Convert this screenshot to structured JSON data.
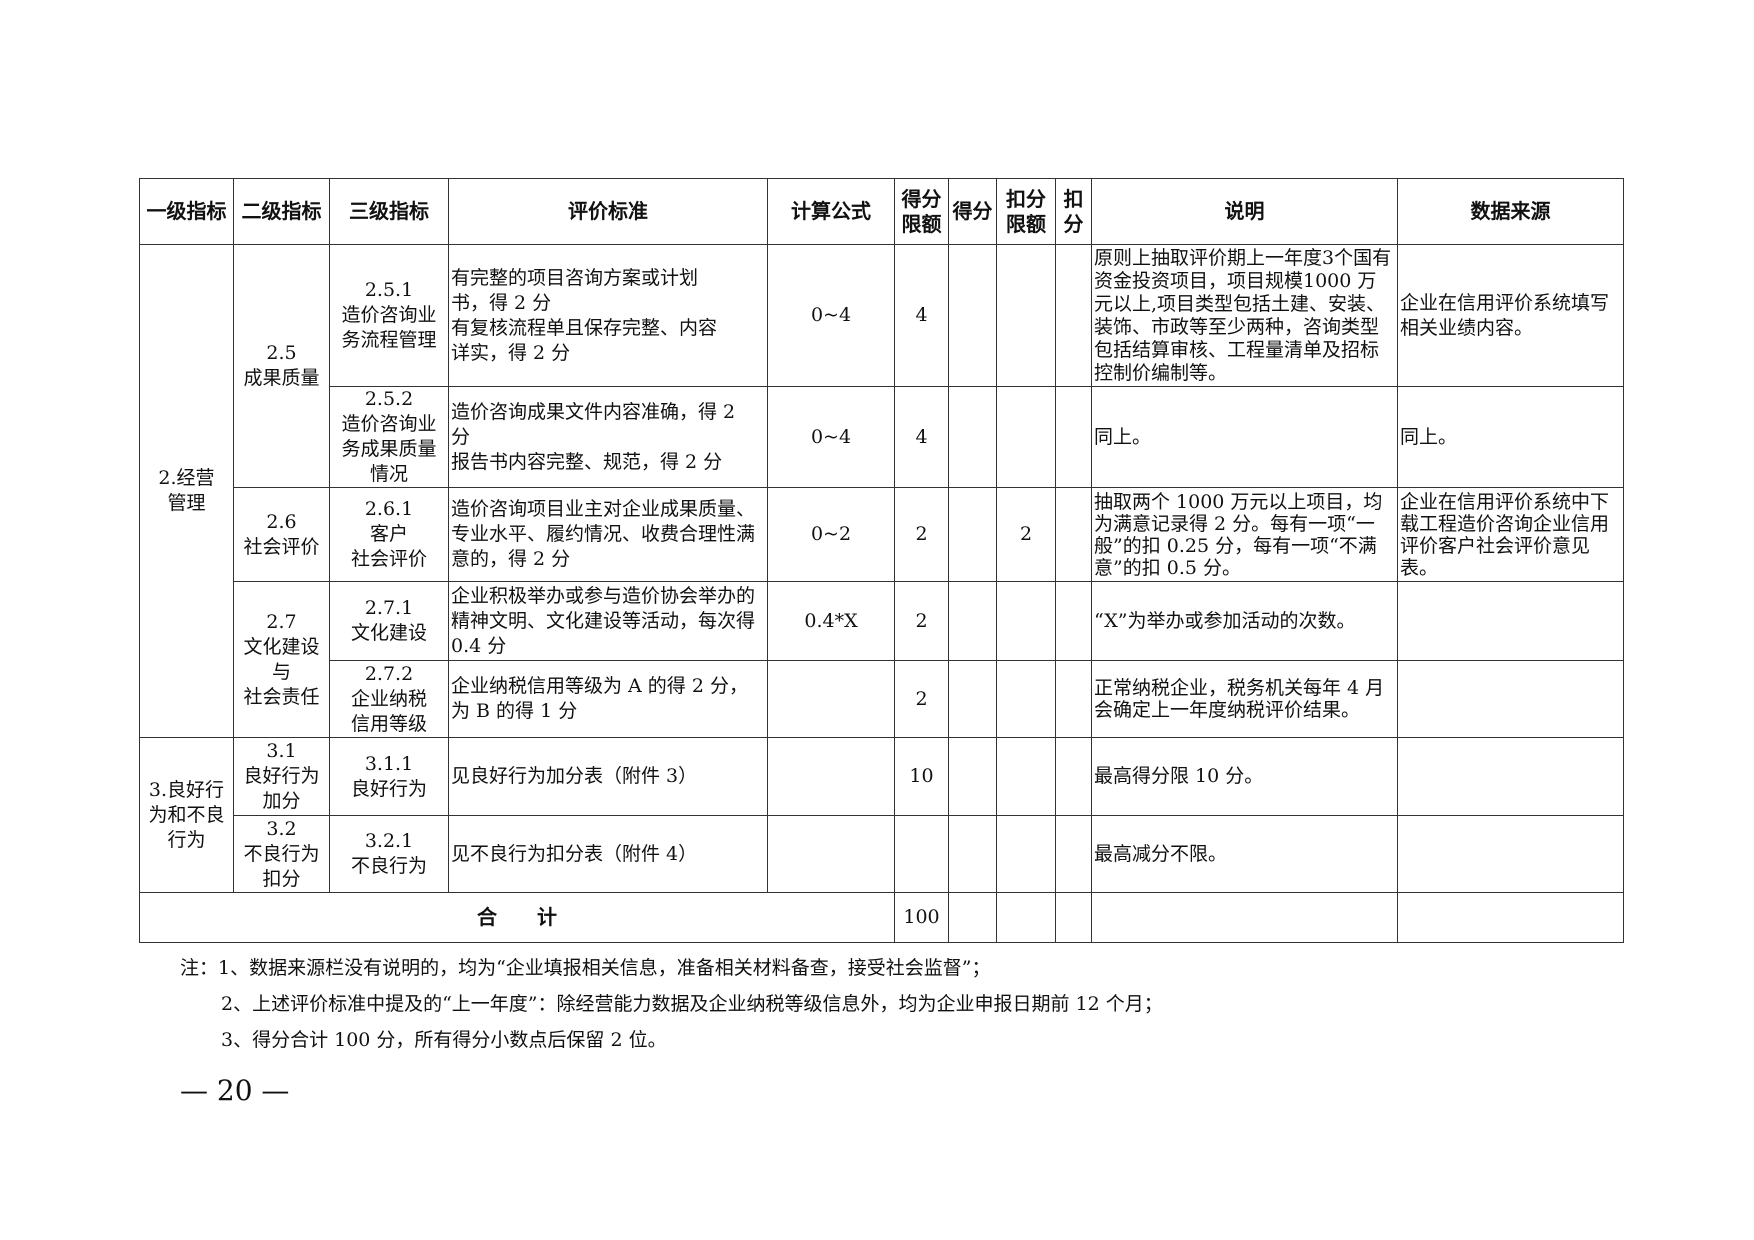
{
  "header": [
    "一级指标",
    "二级指标",
    "三级指标",
    "评价标准",
    "计算公式",
    "得分\n限额",
    "得分",
    "扣分\n限额",
    "扣\n分",
    "说明",
    "数据来源"
  ],
  "groups": {
    "g2": "2.经营\n管理",
    "g3": "3.良好行\n为和不良\n行为",
    "s25": "2.5\n成果质量",
    "s26": "2.6\n社会评价",
    "s27": "2.7\n文化建设\n与\n社会责任",
    "s31": "3.1\n良好行为\n加分",
    "s32": "3.2\n不良行为\n扣分"
  },
  "rows": [
    {
      "c3": "2.5.1\n造价咨询业\n务流程管理",
      "criteria": "有完整的项目咨询方案或计划\n书，得 2 分\n有复核流程单且保存完整、内容\n详实，得 2 分",
      "formula": "0~4",
      "limit": "4",
      "score": "",
      "deduct_limit": "",
      "deduct": "",
      "note": "原则上抽取评价期上一年度3个国有资金投资项目，项目规模1000 万元以上,项目类型包括土建、安装、装饰、市政等至少两种，咨询类型包括结算审核、工程量清单及招标控制价编制等。",
      "source": "企业在信用评价系统填写相关业绩内容。"
    },
    {
      "c3": "2.5.2\n造价咨询业\n务成果质量\n情况",
      "criteria": "造价咨询成果文件内容准确，得 2\n分\n报告书内容完整、规范，得 2 分",
      "formula": "0~4",
      "limit": "4",
      "score": "",
      "deduct_limit": "",
      "deduct": "",
      "note": "同上。",
      "source": "同上。"
    },
    {
      "c3": "2.6.1\n客户\n社会评价",
      "criteria": "造价咨询项目业主对企业成果质量、专业水平、履约情况、收费合理性满意的，得 2 分",
      "formula": "0~2",
      "limit": "2",
      "score": "",
      "deduct_limit": "2",
      "deduct": "",
      "note": "抽取两个 1000 万元以上项目，均为满意记录得 2 分。每有一项“一般”的扣 0.25 分，每有一项“不满意”的扣 0.5 分。",
      "source": "企业在信用评价系统中下载工程造价咨询企业信用评价客户社会评价意见表。"
    },
    {
      "c3": "2.7.1\n文化建设",
      "criteria": "企业积极举办或参与造价协会举办的精神文明、文化建设等活动，每次得 0.4 分",
      "formula": "0.4*X",
      "limit": "2",
      "score": "",
      "deduct_limit": "",
      "deduct": "",
      "note": "“X”为举办或参加活动的次数。",
      "source": ""
    },
    {
      "c3": "2.7.2\n企业纳税\n信用等级",
      "criteria": "企业纳税信用等级为 A 的得 2 分，为 B 的得 1 分",
      "formula": "",
      "limit": "2",
      "score": "",
      "deduct_limit": "",
      "deduct": "",
      "note": "正常纳税企业，税务机关每年 4 月会确定上一年度纳税评价结果。",
      "source": ""
    },
    {
      "c3": "3.1.1\n良好行为",
      "criteria": "见良好行为加分表（附件 3）",
      "formula": "",
      "limit": "10",
      "score": "",
      "deduct_limit": "",
      "deduct": "",
      "note": "最高得分限 10 分。",
      "source": ""
    },
    {
      "c3": "3.2.1\n不良行为",
      "criteria": "见不良行为扣分表（附件 4）",
      "formula": "",
      "limit": "",
      "score": "",
      "deduct_limit": "",
      "deduct": "",
      "note": "最高减分不限。",
      "source": ""
    }
  ],
  "total": {
    "label": "合　　计",
    "limit": "100"
  },
  "notes": [
    "注：1、数据来源栏没有说明的，均为“企业填报相关信息，准备相关材料备查，接受社会监督”；",
    "2、上述评价标准中提及的“上一年度”：除经营能力数据及企业纳税等级信息外，均为企业申报日期前 12 个月；",
    "3、得分合计 100 分，所有得分小数点后保留 2 位。"
  ],
  "page_number": "— 20 —"
}
